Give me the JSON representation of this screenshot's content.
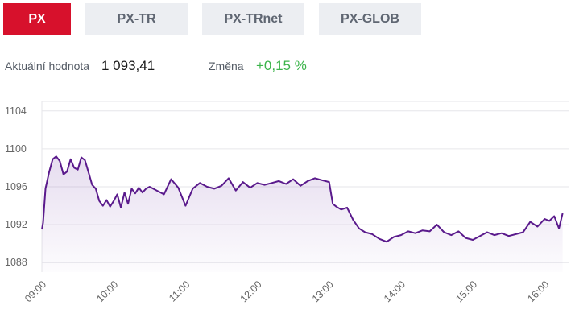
{
  "tabs": [
    {
      "label": "PX",
      "active": true
    },
    {
      "label": "PX-TR",
      "active": false
    },
    {
      "label": "PX-TRnet",
      "active": false
    },
    {
      "label": "PX-GLOB",
      "active": false
    }
  ],
  "stats": {
    "current_label": "Aktuální hodnota",
    "current_value": "1 093,41",
    "change_label": "Změna",
    "change_value": "+0,15 %"
  },
  "colors": {
    "accent": "#d7112c",
    "line": "#5a1a8c",
    "positive": "#3cb44b"
  },
  "chart_data": {
    "type": "area",
    "title": "",
    "xlabel": "",
    "ylabel": "",
    "ylim": [
      1087,
      1105
    ],
    "yticks": [
      1088,
      1092,
      1096,
      1100,
      1104
    ],
    "xticks": [
      "09:00",
      "10:00",
      "11:00",
      "12:00",
      "13:00",
      "14:00",
      "15:00",
      "16:00"
    ],
    "grid": true,
    "series": [
      {
        "x": [
          "09:00",
          "09:01",
          "09:03",
          "09:06",
          "09:09",
          "09:12",
          "09:15",
          "09:18",
          "09:21",
          "09:24",
          "09:27",
          "09:30",
          "09:33",
          "09:36",
          "09:39",
          "09:42",
          "09:45",
          "09:48",
          "09:51",
          "09:54",
          "09:57",
          "10:00",
          "10:03",
          "10:06",
          "10:09",
          "10:12",
          "10:15",
          "10:18",
          "10:21",
          "10:24",
          "10:27",
          "10:30",
          "10:36",
          "10:42",
          "10:48",
          "10:54",
          "11:00",
          "11:06",
          "11:12",
          "11:18",
          "11:24",
          "11:30",
          "11:36",
          "11:42",
          "11:48",
          "11:54",
          "12:00",
          "12:06",
          "12:12",
          "12:18",
          "12:24",
          "12:30",
          "12:36",
          "12:42",
          "12:48",
          "12:54",
          "13:00",
          "13:03",
          "13:06",
          "13:10",
          "13:15",
          "13:20",
          "13:25",
          "13:30",
          "13:36",
          "13:42",
          "13:48",
          "13:54",
          "14:00",
          "14:06",
          "14:12",
          "14:18",
          "14:24",
          "14:30",
          "14:36",
          "14:42",
          "14:48",
          "14:54",
          "15:00",
          "15:06",
          "15:12",
          "15:18",
          "15:24",
          "15:30",
          "15:36",
          "15:42",
          "15:48",
          "15:54",
          "16:00",
          "16:04",
          "16:08",
          "16:12",
          "16:15"
        ],
        "values": [
          1091.5,
          1092.2,
          1095.8,
          1097.5,
          1098.9,
          1099.2,
          1098.7,
          1097.3,
          1097.6,
          1098.9,
          1098.0,
          1097.8,
          1099.1,
          1098.8,
          1097.5,
          1096.2,
          1095.8,
          1094.5,
          1094.0,
          1094.6,
          1093.9,
          1094.5,
          1095.2,
          1093.8,
          1095.4,
          1094.2,
          1095.8,
          1095.3,
          1095.9,
          1095.4,
          1095.8,
          1096.0,
          1095.6,
          1095.2,
          1096.8,
          1095.9,
          1094.0,
          1095.8,
          1096.4,
          1096.0,
          1095.8,
          1096.1,
          1096.9,
          1095.6,
          1096.5,
          1095.9,
          1096.4,
          1096.2,
          1096.4,
          1096.6,
          1096.3,
          1096.8,
          1096.1,
          1096.6,
          1096.9,
          1096.7,
          1096.5,
          1094.2,
          1093.9,
          1093.6,
          1093.8,
          1092.5,
          1091.6,
          1091.2,
          1091.0,
          1090.5,
          1090.2,
          1090.7,
          1090.9,
          1091.3,
          1091.1,
          1091.4,
          1091.3,
          1092.0,
          1091.2,
          1090.9,
          1091.3,
          1090.6,
          1090.4,
          1090.8,
          1091.2,
          1090.9,
          1091.1,
          1090.8,
          1091.0,
          1091.2,
          1092.3,
          1091.8,
          1092.6,
          1092.4,
          1092.9,
          1091.6,
          1093.2
        ]
      }
    ]
  }
}
